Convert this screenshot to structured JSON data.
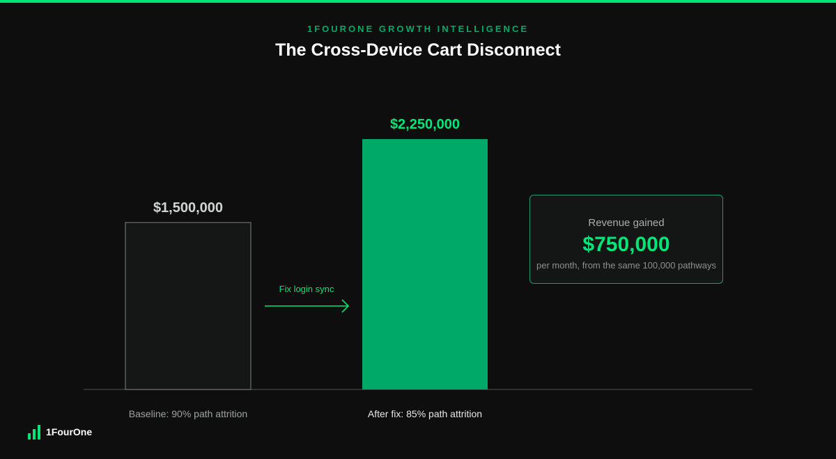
{
  "header": {
    "eyebrow": "1FOURONE GROWTH INTELLIGENCE",
    "title": "The Cross-Device Cart Disconnect"
  },
  "colors": {
    "accent": "#00e676",
    "bar_green": "#00a968",
    "baseline_bar_fill": "#151717",
    "baseline_bar_border": "#5a5e5d",
    "baseline_text": "#d2d4d3",
    "category_muted": "#9ea3a1",
    "category_light": "#e6e8e7",
    "axis": "#2f3231",
    "callout_border": "#1f9e6a"
  },
  "chart_data": {
    "type": "bar",
    "categories": [
      "Baseline: 90% path attrition",
      "After fix: 85% path attrition"
    ],
    "values": [
      1500000,
      2250000
    ],
    "value_labels": [
      "$1,500,000",
      "$2,250,000"
    ],
    "ylim": [
      0,
      3000000
    ],
    "annotation": "Fix login sync",
    "grid": false
  },
  "callout": {
    "label": "Revenue gained",
    "value": "$750,000",
    "note": "per month, from the same 100,000 pathways"
  },
  "brand": {
    "name": "1FourOne",
    "icon": "bar-chart-logo-icon"
  }
}
